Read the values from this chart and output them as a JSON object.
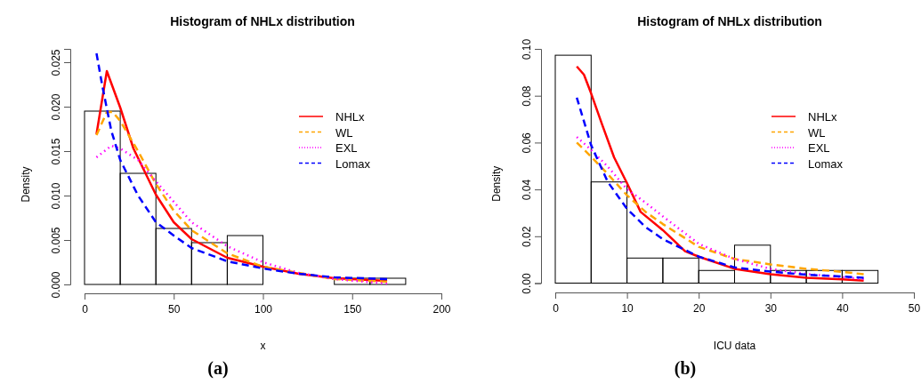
{
  "chart_data": [
    {
      "type": "histogram",
      "title": "Histogram of NHLx distribution",
      "xlabel": "x",
      "ylabel": "Density",
      "annotations": [
        "(a)"
      ],
      "bins": [
        0,
        20,
        40,
        60,
        80,
        100,
        120,
        140,
        160,
        180
      ],
      "values": [
        0.0195,
        0.0125,
        0.0063,
        0.0047,
        0.0055,
        0,
        0,
        0.0007,
        0.0007
      ],
      "xlim": [
        0,
        200
      ],
      "xticks": [
        0,
        50,
        100,
        150,
        200
      ],
      "ylim": [
        0,
        0.0265
      ],
      "yticks": [
        {
          "value": 0,
          "label": "0.000"
        },
        {
          "value": 0.005,
          "label": "0.005"
        },
        {
          "value": 0.01,
          "label": "0.010"
        },
        {
          "value": 0.015,
          "label": "0.015"
        },
        {
          "value": 0.02,
          "label": "0.020"
        },
        {
          "value": 0.025,
          "label": "0.025"
        }
      ],
      "legend": "right",
      "grid": false,
      "series": [
        {
          "name": "NHLx",
          "type": "line",
          "color": "#ff0000",
          "line_style": "solid",
          "x": [
            6.7,
            12.5,
            20,
            27.4,
            40,
            50,
            60,
            80,
            100,
            120,
            140,
            169.6
          ],
          "values": [
            0.0169,
            0.024,
            0.0199,
            0.0153,
            0.0101,
            0.007,
            0.0051,
            0.003,
            0.002,
            0.0012,
            0.0007,
            0.0004
          ]
        },
        {
          "name": "WL",
          "type": "line",
          "color": "#ffa500",
          "line_style": "dashed",
          "x": [
            6.7,
            12.5,
            15.8,
            20,
            30,
            40,
            50,
            60,
            80,
            100,
            120,
            140,
            169.6
          ],
          "values": [
            0.0168,
            0.0194,
            0.0194,
            0.0184,
            0.015,
            0.0113,
            0.0083,
            0.0061,
            0.0035,
            0.002,
            0.0013,
            0.0006,
            0.0003
          ]
        },
        {
          "name": "EXL",
          "type": "line",
          "color": "#ff00ff",
          "line_style": "dotted",
          "x": [
            6.7,
            15,
            20,
            30,
            40,
            50,
            60,
            80,
            100,
            120,
            140,
            169.6
          ],
          "values": [
            0.0143,
            0.0156,
            0.0153,
            0.014,
            0.0116,
            0.0093,
            0.007,
            0.0043,
            0.0025,
            0.0013,
            0.0006,
            0.0001
          ]
        },
        {
          "name": "Lomax",
          "type": "line",
          "color": "#0000ff",
          "line_style": "dashed",
          "x": [
            6.7,
            10,
            15,
            20,
            30,
            40,
            50,
            60,
            80,
            100,
            120,
            140,
            169.6
          ],
          "values": [
            0.026,
            0.0223,
            0.0173,
            0.014,
            0.01,
            0.007,
            0.0055,
            0.0041,
            0.0026,
            0.0018,
            0.0012,
            0.0008,
            0.0006
          ]
        }
      ]
    },
    {
      "type": "histogram",
      "title": "Histogram of NHLx distribution",
      "xlabel": "ICU data",
      "ylabel": "Density",
      "annotations": [
        "(b)"
      ],
      "bins": [
        0,
        5,
        10,
        15,
        20,
        25,
        30,
        35,
        40,
        45
      ],
      "values": [
        0.0973,
        0.0432,
        0.0107,
        0.0107,
        0.0054,
        0.0162,
        0.0054,
        0.0054,
        0.0054
      ],
      "xlim": [
        0,
        50
      ],
      "xticks": [
        0,
        10,
        20,
        30,
        40,
        50
      ],
      "ylim": [
        0,
        0.1
      ],
      "yticks": [
        {
          "value": 0,
          "label": "0.00"
        },
        {
          "value": 0.02,
          "label": "0.02"
        },
        {
          "value": 0.04,
          "label": "0.04"
        },
        {
          "value": 0.06,
          "label": "0.06"
        },
        {
          "value": 0.08,
          "label": "0.08"
        },
        {
          "value": 0.1,
          "label": "0.10"
        }
      ],
      "legend": "right",
      "grid": false,
      "series": [
        {
          "name": "NHLx",
          "type": "line",
          "color": "#ff0000",
          "line_style": "solid",
          "x": [
            3,
            4,
            5,
            6.5,
            8.2,
            10,
            11.9,
            15,
            18.1,
            20,
            25,
            30,
            35,
            40,
            43
          ],
          "values": [
            0.0925,
            0.089,
            0.081,
            0.068,
            0.0537,
            0.0427,
            0.0304,
            0.0226,
            0.0136,
            0.0113,
            0.0061,
            0.0038,
            0.0023,
            0.0016,
            0.001
          ]
        },
        {
          "name": "WL",
          "type": "line",
          "color": "#ffa500",
          "line_style": "dashed",
          "x": [
            3,
            5,
            7.3,
            10,
            12.6,
            15,
            20,
            25,
            30,
            35,
            40,
            43
          ],
          "values": [
            0.06,
            0.054,
            0.0466,
            0.0375,
            0.0304,
            0.0252,
            0.0155,
            0.0103,
            0.008,
            0.0061,
            0.0048,
            0.0038
          ]
        },
        {
          "name": "EXL",
          "type": "line",
          "color": "#ff00ff",
          "line_style": "dotted",
          "x": [
            3,
            5,
            7.3,
            10,
            12.6,
            15,
            20,
            25,
            30,
            35,
            40,
            43
          ],
          "values": [
            0.0624,
            0.0569,
            0.0498,
            0.0401,
            0.0343,
            0.0285,
            0.0168,
            0.0103,
            0.0061,
            0.0039,
            0.0026,
            0.0017
          ]
        },
        {
          "name": "Lomax",
          "type": "line",
          "color": "#0000ff",
          "line_style": "dashed",
          "x": [
            3,
            5,
            7.3,
            10,
            12.6,
            15,
            20,
            25,
            30,
            35,
            40,
            43
          ],
          "values": [
            0.0792,
            0.0589,
            0.0433,
            0.0317,
            0.0239,
            0.0188,
            0.0113,
            0.0067,
            0.0049,
            0.0036,
            0.0028,
            0.0023
          ]
        }
      ]
    }
  ]
}
